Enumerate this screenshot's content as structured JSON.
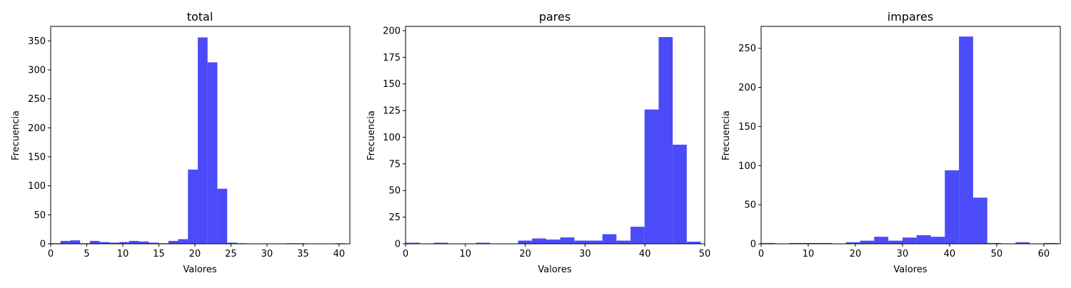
{
  "chart_data": [
    {
      "type": "bar",
      "title": "total",
      "xlabel": "Valores",
      "ylabel": "Frecuencia",
      "xlim": [
        0,
        41.5
      ],
      "ylim": [
        0,
        375
      ],
      "xticks": [
        "0",
        "5",
        "10",
        "15",
        "20",
        "25",
        "30",
        "35",
        "40"
      ],
      "yticks": [
        "0",
        "50",
        "100",
        "150",
        "200",
        "250",
        "300",
        "350"
      ],
      "bar_color": "#4b4bfa",
      "bins": [
        {
          "x0": 0.0,
          "x1": 1.36,
          "value": 1
        },
        {
          "x0": 1.36,
          "x1": 2.72,
          "value": 5
        },
        {
          "x0": 2.72,
          "x1": 4.08,
          "value": 6
        },
        {
          "x0": 4.08,
          "x1": 5.44,
          "value": 1
        },
        {
          "x0": 5.44,
          "x1": 6.8,
          "value": 5
        },
        {
          "x0": 6.8,
          "x1": 8.16,
          "value": 3
        },
        {
          "x0": 8.16,
          "x1": 9.52,
          "value": 2
        },
        {
          "x0": 9.52,
          "x1": 10.88,
          "value": 3
        },
        {
          "x0": 10.88,
          "x1": 12.24,
          "value": 5
        },
        {
          "x0": 12.24,
          "x1": 13.6,
          "value": 4
        },
        {
          "x0": 13.6,
          "x1": 14.96,
          "value": 2
        },
        {
          "x0": 14.96,
          "x1": 16.32,
          "value": 1
        },
        {
          "x0": 16.32,
          "x1": 17.68,
          "value": 5
        },
        {
          "x0": 17.68,
          "x1": 19.04,
          "value": 8
        },
        {
          "x0": 19.04,
          "x1": 20.4,
          "value": 128
        },
        {
          "x0": 20.4,
          "x1": 21.76,
          "value": 356
        },
        {
          "x0": 21.76,
          "x1": 23.12,
          "value": 313
        },
        {
          "x0": 23.12,
          "x1": 24.48,
          "value": 95
        },
        {
          "x0": 24.48,
          "x1": 25.84,
          "value": 2
        },
        {
          "x0": 25.84,
          "x1": 27.2,
          "value": 1
        },
        {
          "x0": 32.64,
          "x1": 34.0,
          "value": 1
        },
        {
          "x0": 34.0,
          "x1": 35.36,
          "value": 1
        },
        {
          "x0": 39.44,
          "x1": 40.8,
          "value": 1
        }
      ]
    },
    {
      "type": "bar",
      "title": "pares",
      "xlabel": "Valores",
      "ylabel": "Frecuencia",
      "xlim": [
        0,
        50
      ],
      "ylim": [
        0,
        204
      ],
      "xticks": [
        "0",
        "10",
        "20",
        "30",
        "40",
        "50"
      ],
      "yticks": [
        "0",
        "25",
        "50",
        "75",
        "100",
        "125",
        "150",
        "175",
        "200"
      ],
      "bar_color": "#4b4bfa",
      "bins": [
        {
          "x0": 0.0,
          "x1": 2.35,
          "value": 1
        },
        {
          "x0": 4.7,
          "x1": 7.05,
          "value": 1
        },
        {
          "x0": 11.75,
          "x1": 14.1,
          "value": 1
        },
        {
          "x0": 18.8,
          "x1": 21.15,
          "value": 3
        },
        {
          "x0": 21.15,
          "x1": 23.5,
          "value": 5
        },
        {
          "x0": 23.5,
          "x1": 25.85,
          "value": 4
        },
        {
          "x0": 25.85,
          "x1": 28.2,
          "value": 6
        },
        {
          "x0": 28.2,
          "x1": 30.55,
          "value": 3
        },
        {
          "x0": 30.55,
          "x1": 32.9,
          "value": 3
        },
        {
          "x0": 32.9,
          "x1": 35.25,
          "value": 9
        },
        {
          "x0": 35.25,
          "x1": 37.6,
          "value": 3
        },
        {
          "x0": 37.6,
          "x1": 39.95,
          "value": 16
        },
        {
          "x0": 39.95,
          "x1": 42.3,
          "value": 126
        },
        {
          "x0": 42.3,
          "x1": 44.65,
          "value": 194
        },
        {
          "x0": 44.65,
          "x1": 47.0,
          "value": 93
        },
        {
          "x0": 47.0,
          "x1": 49.35,
          "value": 2
        }
      ]
    },
    {
      "type": "bar",
      "title": "impares",
      "xlabel": "Valores",
      "ylabel": "Frecuencia",
      "xlim": [
        0,
        63.5
      ],
      "ylim": [
        0,
        278
      ],
      "xticks": [
        "0",
        "10",
        "20",
        "30",
        "40",
        "50",
        "60"
      ],
      "yticks": [
        "0",
        "50",
        "100",
        "150",
        "200",
        "250"
      ],
      "bar_color": "#4b4bfa",
      "bins": [
        {
          "x0": 0.0,
          "x1": 3.0,
          "value": 1
        },
        {
          "x0": 6.0,
          "x1": 9.0,
          "value": 1
        },
        {
          "x0": 9.0,
          "x1": 12.0,
          "value": 1
        },
        {
          "x0": 12.0,
          "x1": 15.0,
          "value": 1
        },
        {
          "x0": 18.0,
          "x1": 21.0,
          "value": 2
        },
        {
          "x0": 21.0,
          "x1": 24.0,
          "value": 4
        },
        {
          "x0": 24.0,
          "x1": 27.0,
          "value": 9
        },
        {
          "x0": 27.0,
          "x1": 30.0,
          "value": 4
        },
        {
          "x0": 30.0,
          "x1": 33.0,
          "value": 8
        },
        {
          "x0": 33.0,
          "x1": 36.0,
          "value": 11
        },
        {
          "x0": 36.0,
          "x1": 39.0,
          "value": 9
        },
        {
          "x0": 39.0,
          "x1": 42.0,
          "value": 94
        },
        {
          "x0": 42.0,
          "x1": 45.0,
          "value": 265
        },
        {
          "x0": 45.0,
          "x1": 48.0,
          "value": 59
        },
        {
          "x0": 48.0,
          "x1": 51.0,
          "value": 1
        },
        {
          "x0": 54.0,
          "x1": 57.0,
          "value": 2
        },
        {
          "x0": 60.0,
          "x1": 63.0,
          "value": 1
        }
      ]
    }
  ]
}
